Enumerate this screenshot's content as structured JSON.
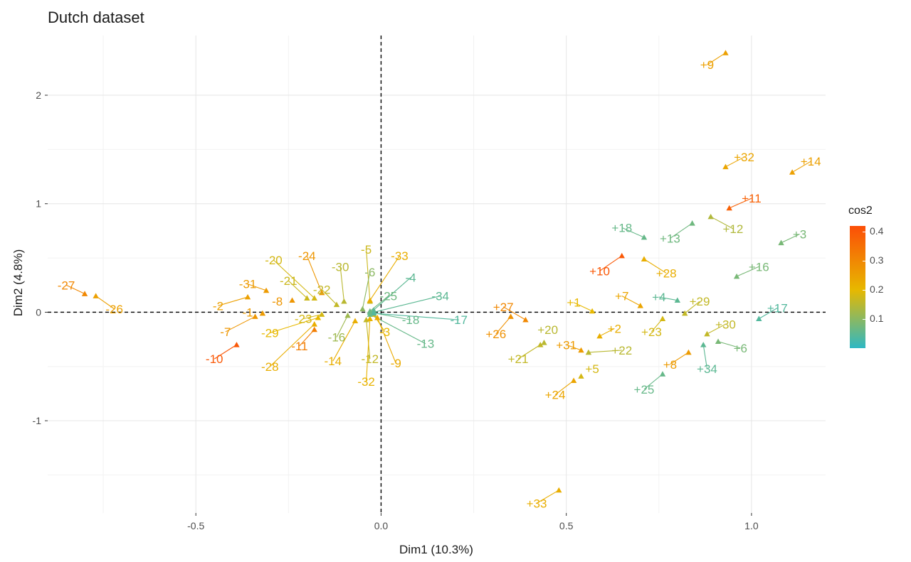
{
  "chart_data": {
    "type": "scatter",
    "title": "Dutch dataset",
    "xlabel": "Dim1 (10.3%)",
    "ylabel": "Dim2 (4.8%)",
    "xlim": [
      -0.9,
      1.2
    ],
    "ylim": [
      -1.85,
      2.55
    ],
    "xticks": [
      "-0.5",
      "0.0",
      "0.5",
      "1.0"
    ],
    "yticks": [
      "-1",
      "0",
      "1",
      "2"
    ],
    "grid": true,
    "reference_lines": {
      "x": 0,
      "y": 0
    },
    "color_scale": {
      "name": "cos2",
      "min": 0.0,
      "max": 0.42,
      "ticks": [
        "0.1",
        "0.2",
        "0.3",
        "0.4"
      ],
      "low_color": "#2EB8C4",
      "mid_color": "#E7B800",
      "high_color": "#FC4E07",
      "midpoint": 0.2
    },
    "points": [
      {
        "label": "+1",
        "x": 0.57,
        "y": 0.01,
        "cos2": 0.2,
        "lx": 0.52,
        "ly": 0.09
      },
      {
        "label": "+2",
        "x": 0.59,
        "y": -0.22,
        "cos2": 0.22,
        "lx": 0.63,
        "ly": -0.15
      },
      {
        "label": "+3",
        "x": 1.08,
        "y": 0.64,
        "cos2": 0.08,
        "lx": 1.13,
        "ly": 0.72
      },
      {
        "label": "+4",
        "x": 0.8,
        "y": 0.11,
        "cos2": 0.05,
        "lx": 0.75,
        "ly": 0.14
      },
      {
        "label": "+5",
        "x": 0.54,
        "y": -0.59,
        "cos2": 0.18,
        "lx": 0.57,
        "ly": -0.52
      },
      {
        "label": "+6",
        "x": 0.91,
        "y": -0.27,
        "cos2": 0.08,
        "lx": 0.97,
        "ly": -0.33
      },
      {
        "label": "+7",
        "x": 0.7,
        "y": 0.06,
        "cos2": 0.24,
        "lx": 0.65,
        "ly": 0.15
      },
      {
        "label": "+8",
        "x": 0.83,
        "y": -0.37,
        "cos2": 0.26,
        "lx": 0.78,
        "ly": -0.48
      },
      {
        "label": "+9",
        "x": 0.93,
        "y": 2.39,
        "cos2": 0.25,
        "lx": 0.88,
        "ly": 2.28
      },
      {
        "label": "+10",
        "x": 0.65,
        "y": 0.52,
        "cos2": 0.4,
        "lx": 0.59,
        "ly": 0.38
      },
      {
        "label": "+11",
        "x": 0.94,
        "y": 0.96,
        "cos2": 0.38,
        "lx": 1.0,
        "ly": 1.05
      },
      {
        "label": "+12",
        "x": 0.89,
        "y": 0.88,
        "cos2": 0.14,
        "lx": 0.95,
        "ly": 0.77
      },
      {
        "label": "+13",
        "x": 0.84,
        "y": 0.82,
        "cos2": 0.07,
        "lx": 0.78,
        "ly": 0.68
      },
      {
        "label": "+14",
        "x": 1.11,
        "y": 1.29,
        "cos2": 0.25,
        "lx": 1.16,
        "ly": 1.39
      },
      {
        "label": "+16",
        "x": 0.96,
        "y": 0.33,
        "cos2": 0.08,
        "lx": 1.02,
        "ly": 0.42
      },
      {
        "label": "+17",
        "x": 1.02,
        "y": -0.06,
        "cos2": 0.04,
        "lx": 1.07,
        "ly": 0.04
      },
      {
        "label": "+18",
        "x": 0.71,
        "y": 0.69,
        "cos2": 0.06,
        "lx": 0.65,
        "ly": 0.78
      },
      {
        "label": "+20",
        "x": 0.44,
        "y": -0.28,
        "cos2": 0.15,
        "lx": 0.45,
        "ly": -0.16
      },
      {
        "label": "+21",
        "x": 0.43,
        "y": -0.3,
        "cos2": 0.16,
        "lx": 0.37,
        "ly": -0.43
      },
      {
        "label": "+22",
        "x": 0.56,
        "y": -0.37,
        "cos2": 0.15,
        "lx": 0.65,
        "ly": -0.35
      },
      {
        "label": "+23",
        "x": 0.76,
        "y": -0.06,
        "cos2": 0.18,
        "lx": 0.73,
        "ly": -0.18
      },
      {
        "label": "+24",
        "x": 0.52,
        "y": -0.63,
        "cos2": 0.24,
        "lx": 0.47,
        "ly": -0.76
      },
      {
        "label": "+25",
        "x": 0.76,
        "y": -0.57,
        "cos2": 0.06,
        "lx": 0.71,
        "ly": -0.71
      },
      {
        "label": "+26",
        "x": 0.35,
        "y": -0.04,
        "cos2": 0.28,
        "lx": 0.31,
        "ly": -0.2
      },
      {
        "label": "+27",
        "x": 0.39,
        "y": -0.07,
        "cos2": 0.3,
        "lx": 0.33,
        "ly": 0.05
      },
      {
        "label": "+28",
        "x": 0.71,
        "y": 0.49,
        "cos2": 0.22,
        "lx": 0.77,
        "ly": 0.36
      },
      {
        "label": "+29",
        "x": 0.82,
        "y": -0.01,
        "cos2": 0.16,
        "lx": 0.86,
        "ly": 0.1
      },
      {
        "label": "+30",
        "x": 0.88,
        "y": -0.2,
        "cos2": 0.16,
        "lx": 0.93,
        "ly": -0.11
      },
      {
        "label": "+31",
        "x": 0.54,
        "y": -0.35,
        "cos2": 0.26,
        "lx": 0.5,
        "ly": -0.3
      },
      {
        "label": "+32",
        "x": 0.93,
        "y": 1.34,
        "cos2": 0.24,
        "lx": 0.98,
        "ly": 1.43
      },
      {
        "label": "+33",
        "x": 0.48,
        "y": -1.64,
        "cos2": 0.22,
        "lx": 0.42,
        "ly": -1.76
      },
      {
        "label": "+34",
        "x": 0.87,
        "y": -0.3,
        "cos2": 0.05,
        "lx": 0.88,
        "ly": -0.52
      },
      {
        "label": "-27",
        "x": -0.8,
        "y": 0.17,
        "cos2": 0.3,
        "lx": -0.85,
        "ly": 0.25
      },
      {
        "label": "-26",
        "x": -0.77,
        "y": 0.15,
        "cos2": 0.25,
        "lx": -0.72,
        "ly": 0.03
      },
      {
        "label": "-31",
        "x": -0.31,
        "y": 0.2,
        "cos2": 0.26,
        "lx": -0.36,
        "ly": 0.26
      },
      {
        "label": "-20",
        "x": -0.18,
        "y": 0.13,
        "cos2": 0.18,
        "lx": -0.29,
        "ly": 0.48
      },
      {
        "label": "-24",
        "x": -0.16,
        "y": 0.18,
        "cos2": 0.27,
        "lx": -0.2,
        "ly": 0.52
      },
      {
        "label": "-21",
        "x": -0.2,
        "y": 0.13,
        "cos2": 0.17,
        "lx": -0.25,
        "ly": 0.29
      },
      {
        "label": "-30",
        "x": -0.1,
        "y": 0.1,
        "cos2": 0.15,
        "lx": -0.11,
        "ly": 0.42
      },
      {
        "label": "-22",
        "x": -0.12,
        "y": 0.07,
        "cos2": 0.16,
        "lx": -0.16,
        "ly": 0.21
      },
      {
        "label": "-8",
        "x": -0.24,
        "y": 0.11,
        "cos2": 0.27,
        "lx": -0.28,
        "ly": 0.1
      },
      {
        "label": "-2",
        "x": -0.36,
        "y": 0.14,
        "cos2": 0.25,
        "lx": -0.44,
        "ly": 0.06
      },
      {
        "label": "-1",
        "x": -0.32,
        "y": -0.01,
        "cos2": 0.26,
        "lx": -0.36,
        "ly": 0.0
      },
      {
        "label": "-7",
        "x": -0.34,
        "y": -0.04,
        "cos2": 0.27,
        "lx": -0.42,
        "ly": -0.18
      },
      {
        "label": "-29",
        "x": -0.17,
        "y": -0.05,
        "cos2": 0.2,
        "lx": -0.3,
        "ly": -0.19
      },
      {
        "label": "-23",
        "x": -0.16,
        "y": -0.02,
        "cos2": 0.18,
        "lx": -0.21,
        "ly": -0.06
      },
      {
        "label": "-11",
        "x": -0.18,
        "y": -0.16,
        "cos2": 0.32,
        "lx": -0.22,
        "ly": -0.31
      },
      {
        "label": "-10",
        "x": -0.39,
        "y": -0.3,
        "cos2": 0.4,
        "lx": -0.45,
        "ly": -0.43
      },
      {
        "label": "-28",
        "x": -0.18,
        "y": -0.11,
        "cos2": 0.22,
        "lx": -0.3,
        "ly": -0.5
      },
      {
        "label": "-16",
        "x": -0.09,
        "y": -0.03,
        "cos2": 0.12,
        "lx": -0.12,
        "ly": -0.23
      },
      {
        "label": "-14",
        "x": -0.07,
        "y": -0.08,
        "cos2": 0.22,
        "lx": -0.13,
        "ly": -0.45
      },
      {
        "label": "-12",
        "x": -0.04,
        "y": -0.07,
        "cos2": 0.16,
        "lx": -0.03,
        "ly": -0.43
      },
      {
        "label": "-32",
        "x": -0.03,
        "y": -0.06,
        "cos2": 0.21,
        "lx": -0.04,
        "ly": -0.64
      },
      {
        "label": "-9",
        "x": -0.01,
        "y": -0.05,
        "cos2": 0.23,
        "lx": 0.04,
        "ly": -0.47
      },
      {
        "label": "-3",
        "x": -0.02,
        "y": -0.02,
        "cos2": 0.2,
        "lx": 0.01,
        "ly": -0.18
      },
      {
        "label": "-5",
        "x": -0.03,
        "y": 0.1,
        "cos2": 0.17,
        "lx": -0.04,
        "ly": 0.58
      },
      {
        "label": "-33",
        "x": -0.03,
        "y": 0.11,
        "cos2": 0.22,
        "lx": 0.05,
        "ly": 0.52
      },
      {
        "label": "-6",
        "x": -0.05,
        "y": 0.03,
        "cos2": 0.1,
        "lx": -0.03,
        "ly": 0.37
      },
      {
        "label": "-4",
        "x": -0.02,
        "y": 0.02,
        "cos2": 0.05,
        "lx": 0.08,
        "ly": 0.32
      },
      {
        "label": "-25",
        "x": -0.03,
        "y": 0.01,
        "cos2": 0.07,
        "lx": 0.02,
        "ly": 0.15
      },
      {
        "label": "-34",
        "x": -0.02,
        "y": 0.0,
        "cos2": 0.05,
        "lx": 0.16,
        "ly": 0.15
      },
      {
        "label": "-18",
        "x": -0.03,
        "y": 0.0,
        "cos2": 0.06,
        "lx": 0.08,
        "ly": -0.07
      },
      {
        "label": "-17",
        "x": -0.02,
        "y": -0.01,
        "cos2": 0.04,
        "lx": 0.21,
        "ly": -0.07
      },
      {
        "label": "-13",
        "x": -0.03,
        "y": -0.02,
        "cos2": 0.06,
        "lx": 0.12,
        "ly": -0.29
      }
    ]
  }
}
